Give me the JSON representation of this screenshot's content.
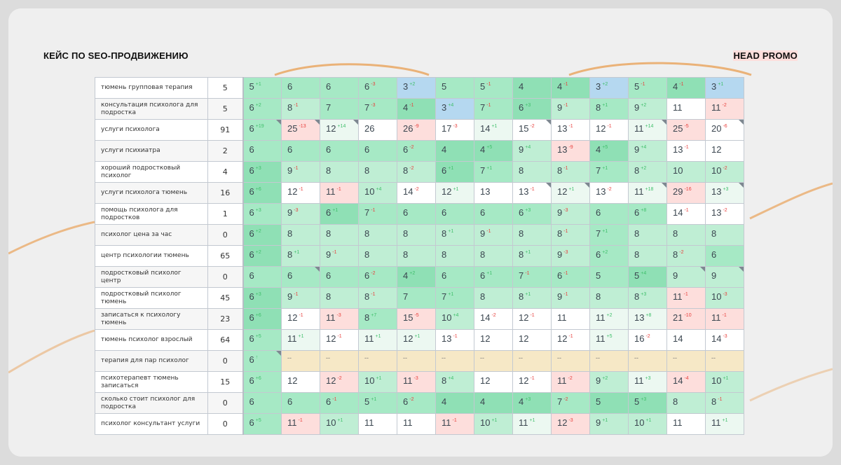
{
  "header": {
    "left_title": "КЕЙС ПО SEO-ПРОДВИЖЕНИЮ",
    "right_title": "HEAD PROMO"
  },
  "colors": {
    "accent_orange": "#e9a25a",
    "up": "#3fbf6a",
    "down": "#e8403d"
  },
  "tones": {
    "g3": "#8fe0b5",
    "g2": "#a6e9c5",
    "g1": "#bfeed4",
    "g0": "#ecf8f1",
    "w": "#ffffff",
    "r": "#fddedc",
    "b": "#b5d8f0",
    "y": "#f6e8c6"
  },
  "rows": [
    {
      "keyword": "тюмень групповая терапия",
      "freq": "5",
      "cells": [
        [
          "5",
          "+1",
          "g2"
        ],
        [
          "6",
          "",
          "g2"
        ],
        [
          "6",
          "",
          "g2"
        ],
        [
          "6",
          "-3",
          "g2"
        ],
        [
          "3",
          "+2",
          "b"
        ],
        [
          "5",
          "",
          "g2"
        ],
        [
          "5",
          "-1",
          "g2"
        ],
        [
          "4",
          "",
          "g3"
        ],
        [
          "4",
          "-1",
          "g3"
        ],
        [
          "3",
          "+2",
          "b"
        ],
        [
          "5",
          "-1",
          "g2"
        ],
        [
          "4",
          "-1",
          "g3"
        ],
        [
          "3",
          "+1",
          "b"
        ]
      ]
    },
    {
      "keyword": "консультация психолога для подростка",
      "freq": "5",
      "cells": [
        [
          "6",
          "+2",
          "g2"
        ],
        [
          "8",
          "-1",
          "g1"
        ],
        [
          "7",
          "",
          "g2"
        ],
        [
          "7",
          "-3",
          "g2"
        ],
        [
          "4",
          "-1",
          "g3"
        ],
        [
          "3",
          "+4",
          "b"
        ],
        [
          "7",
          "-1",
          "g2"
        ],
        [
          "6",
          "+3",
          "g3"
        ],
        [
          "9",
          "-1",
          "g1"
        ],
        [
          "8",
          "+1",
          "g2"
        ],
        [
          "9",
          "+2",
          "g1"
        ],
        [
          "11",
          "",
          "w"
        ],
        [
          "11",
          "-2",
          "r"
        ]
      ]
    },
    {
      "keyword": "услуги психолога",
      "freq": "91",
      "cells": [
        [
          "6",
          "+19",
          "g2",
          1
        ],
        [
          "25",
          "-13",
          "r",
          1
        ],
        [
          "12",
          "+14",
          "g0",
          1
        ],
        [
          "26",
          "",
          "w"
        ],
        [
          "26",
          "-9",
          "r"
        ],
        [
          "17",
          "-3",
          "w"
        ],
        [
          "14",
          "+1",
          "g0"
        ],
        [
          "15",
          "-2",
          "w",
          1
        ],
        [
          "13",
          "-1",
          "w"
        ],
        [
          "12",
          "-1",
          "w"
        ],
        [
          "11",
          "+14",
          "g0",
          1
        ],
        [
          "25",
          "-5",
          "r"
        ],
        [
          "20",
          "-6",
          "w",
          1
        ]
      ]
    },
    {
      "keyword": "услуги психиатра",
      "freq": "2",
      "cells": [
        [
          "6",
          "",
          "g2"
        ],
        [
          "6",
          "",
          "g2"
        ],
        [
          "6",
          "",
          "g2"
        ],
        [
          "6",
          "",
          "g2"
        ],
        [
          "6",
          "-2",
          "g2"
        ],
        [
          "4",
          "",
          "g3"
        ],
        [
          "4",
          "+5",
          "g3"
        ],
        [
          "9",
          "+4",
          "g1"
        ],
        [
          "13",
          "-9",
          "r"
        ],
        [
          "4",
          "+5",
          "g3"
        ],
        [
          "9",
          "+4",
          "g1"
        ],
        [
          "13",
          "-1",
          "w"
        ],
        [
          "12",
          "",
          "w"
        ]
      ]
    },
    {
      "keyword": "хороший подростковый психолог",
      "freq": "4",
      "cells": [
        [
          "6",
          "+3",
          "g3"
        ],
        [
          "9",
          "-1",
          "g1"
        ],
        [
          "8",
          "",
          "g1"
        ],
        [
          "8",
          "",
          "g1"
        ],
        [
          "8",
          "-2",
          "g1"
        ],
        [
          "6",
          "+1",
          "g3"
        ],
        [
          "7",
          "+1",
          "g2"
        ],
        [
          "8",
          "",
          "g1"
        ],
        [
          "8",
          "-1",
          "g1"
        ],
        [
          "7",
          "+1",
          "g2"
        ],
        [
          "8",
          "+2",
          "g1"
        ],
        [
          "10",
          "",
          "g1"
        ],
        [
          "10",
          "-2",
          "g1"
        ]
      ]
    },
    {
      "keyword": "услуги психолога тюмень",
      "freq": "16",
      "cells": [
        [
          "6",
          "+6",
          "g3"
        ],
        [
          "12",
          "-1",
          "w"
        ],
        [
          "11",
          "-1",
          "r"
        ],
        [
          "10",
          "+4",
          "g1"
        ],
        [
          "14",
          "-2",
          "w"
        ],
        [
          "12",
          "+1",
          "g0"
        ],
        [
          "13",
          "",
          "w"
        ],
        [
          "13",
          "-1",
          "w",
          1
        ],
        [
          "12",
          "+1",
          "g0",
          1
        ],
        [
          "13",
          "-2",
          "w"
        ],
        [
          "11",
          "+18",
          "g0",
          1
        ],
        [
          "29",
          "-16",
          "r"
        ],
        [
          "13",
          "+3",
          "g0",
          1
        ]
      ]
    },
    {
      "keyword": "помощь психолога для подростков",
      "freq": "1",
      "cells": [
        [
          "6",
          "+3",
          "g2"
        ],
        [
          "9",
          "-3",
          "g1"
        ],
        [
          "6",
          "+1",
          "g3"
        ],
        [
          "7",
          "-1",
          "g2"
        ],
        [
          "6",
          "",
          "g2"
        ],
        [
          "6",
          "",
          "g2"
        ],
        [
          "6",
          "",
          "g2"
        ],
        [
          "6",
          "+3",
          "g2"
        ],
        [
          "9",
          "-3",
          "g1"
        ],
        [
          "6",
          "",
          "g2"
        ],
        [
          "6",
          "+8",
          "g2"
        ],
        [
          "14",
          "-1",
          "w"
        ],
        [
          "13",
          "-2",
          "w"
        ]
      ]
    },
    {
      "keyword": "психолог цена за час",
      "freq": "0",
      "cells": [
        [
          "6",
          "+2",
          "g3"
        ],
        [
          "8",
          "",
          "g1"
        ],
        [
          "8",
          "",
          "g1"
        ],
        [
          "8",
          "",
          "g1"
        ],
        [
          "8",
          "",
          "g1"
        ],
        [
          "8",
          "+1",
          "g1"
        ],
        [
          "9",
          "-1",
          "g1"
        ],
        [
          "8",
          "",
          "g1"
        ],
        [
          "8",
          "-1",
          "g1"
        ],
        [
          "7",
          "+1",
          "g2"
        ],
        [
          "8",
          "",
          "g1"
        ],
        [
          "8",
          "",
          "g1"
        ],
        [
          "8",
          "",
          "g1"
        ]
      ]
    },
    {
      "keyword": "центр психологии тюмень",
      "freq": "65",
      "cells": [
        [
          "6",
          "+2",
          "g3"
        ],
        [
          "8",
          "+1",
          "g1"
        ],
        [
          "9",
          "-1",
          "g1"
        ],
        [
          "8",
          "",
          "g1"
        ],
        [
          "8",
          "",
          "g1"
        ],
        [
          "8",
          "",
          "g1"
        ],
        [
          "8",
          "",
          "g1"
        ],
        [
          "8",
          "+1",
          "g1"
        ],
        [
          "9",
          "-3",
          "g1"
        ],
        [
          "6",
          "+2",
          "g2"
        ],
        [
          "8",
          "",
          "g1"
        ],
        [
          "8",
          "-2",
          "g1"
        ],
        [
          "6",
          "",
          "g2"
        ]
      ]
    },
    {
      "keyword": "подростковый психолог центр",
      "freq": "0",
      "cells": [
        [
          "6",
          "",
          "g2"
        ],
        [
          "6",
          "",
          "g2",
          1
        ],
        [
          "6",
          "",
          "g2"
        ],
        [
          "6",
          "-2",
          "g2"
        ],
        [
          "4",
          "+2",
          "g3"
        ],
        [
          "6",
          "",
          "g2"
        ],
        [
          "6",
          "+1",
          "g2"
        ],
        [
          "7",
          "-1",
          "g2"
        ],
        [
          "6",
          "-1",
          "g2"
        ],
        [
          "5",
          "",
          "g2"
        ],
        [
          "5",
          "+4",
          "g3"
        ],
        [
          "9",
          "",
          "g1",
          1
        ],
        [
          "9",
          "",
          "g1",
          1
        ]
      ]
    },
    {
      "keyword": "подростковый психолог тюмень",
      "freq": "45",
      "cells": [
        [
          "6",
          "+3",
          "g3"
        ],
        [
          "9",
          "-1",
          "g1"
        ],
        [
          "8",
          "",
          "g1"
        ],
        [
          "8",
          "-1",
          "g1"
        ],
        [
          "7",
          "",
          "g2"
        ],
        [
          "7",
          "+1",
          "g2"
        ],
        [
          "8",
          "",
          "g1"
        ],
        [
          "8",
          "+1",
          "g1"
        ],
        [
          "9",
          "-1",
          "g1"
        ],
        [
          "8",
          "",
          "g1"
        ],
        [
          "8",
          "+3",
          "g1"
        ],
        [
          "11",
          "-1",
          "r"
        ],
        [
          "10",
          "-3",
          "g1"
        ]
      ]
    },
    {
      "keyword": "записаться к психологу тюмень",
      "freq": "23",
      "cells": [
        [
          "6",
          "+6",
          "g3"
        ],
        [
          "12",
          "-1",
          "w"
        ],
        [
          "11",
          "-3",
          "r"
        ],
        [
          "8",
          "+7",
          "g2"
        ],
        [
          "15",
          "-5",
          "r"
        ],
        [
          "10",
          "+4",
          "g1"
        ],
        [
          "14",
          "-2",
          "w"
        ],
        [
          "12",
          "-1",
          "w"
        ],
        [
          "11",
          "",
          "w"
        ],
        [
          "11",
          "+2",
          "g0"
        ],
        [
          "13",
          "+8",
          "g0"
        ],
        [
          "21",
          "-10",
          "r"
        ],
        [
          "11",
          "-1",
          "r"
        ]
      ]
    },
    {
      "keyword": "тюмень психолог взрослый",
      "freq": "64",
      "cells": [
        [
          "6",
          "+5",
          "g2"
        ],
        [
          "11",
          "+1",
          "g0"
        ],
        [
          "12",
          "-1",
          "w"
        ],
        [
          "11",
          "+1",
          "g0"
        ],
        [
          "12",
          "+1",
          "g0"
        ],
        [
          "13",
          "-1",
          "w"
        ],
        [
          "12",
          "",
          "w"
        ],
        [
          "12",
          "",
          "w"
        ],
        [
          "12",
          "-1",
          "w"
        ],
        [
          "11",
          "+5",
          "g0"
        ],
        [
          "16",
          "-2",
          "w"
        ],
        [
          "14",
          "",
          "w"
        ],
        [
          "14",
          "-3",
          "w"
        ]
      ]
    },
    {
      "keyword": "терапия для пар психолог",
      "freq": "0",
      "cells": [
        [
          "6",
          "↑",
          "g2",
          1
        ],
        [
          "--",
          "",
          "y"
        ],
        [
          "--",
          "",
          "y"
        ],
        [
          "--",
          "",
          "y"
        ],
        [
          "--",
          "",
          "y"
        ],
        [
          "--",
          "",
          "y"
        ],
        [
          "--",
          "",
          "y"
        ],
        [
          "--",
          "",
          "y"
        ],
        [
          "--",
          "",
          "y"
        ],
        [
          "--",
          "",
          "y"
        ],
        [
          "--",
          "",
          "y"
        ],
        [
          "--",
          "",
          "y"
        ],
        [
          "--",
          "",
          "y"
        ]
      ]
    },
    {
      "keyword": "психотерапевт тюмень записаться",
      "freq": "15",
      "cells": [
        [
          "6",
          "+6",
          "g2"
        ],
        [
          "12",
          "",
          "w"
        ],
        [
          "12",
          "-2",
          "r"
        ],
        [
          "10",
          "+1",
          "g1"
        ],
        [
          "11",
          "-3",
          "r"
        ],
        [
          "8",
          "+4",
          "g1"
        ],
        [
          "12",
          "",
          "w"
        ],
        [
          "12",
          "-1",
          "w"
        ],
        [
          "11",
          "-2",
          "r"
        ],
        [
          "9",
          "+2",
          "g1"
        ],
        [
          "11",
          "+3",
          "g0"
        ],
        [
          "14",
          "-4",
          "r"
        ],
        [
          "10",
          "+1",
          "g1"
        ]
      ]
    },
    {
      "keyword": "сколько стоит психолог для подростка",
      "freq": "0",
      "cells": [
        [
          "6",
          "",
          "g2"
        ],
        [
          "6",
          "",
          "g2"
        ],
        [
          "6",
          "-1",
          "g2"
        ],
        [
          "5",
          "+1",
          "g2"
        ],
        [
          "6",
          "-2",
          "g2"
        ],
        [
          "4",
          "",
          "g3"
        ],
        [
          "4",
          "",
          "g3"
        ],
        [
          "4",
          "+3",
          "g3"
        ],
        [
          "7",
          "-2",
          "g2"
        ],
        [
          "5",
          "",
          "g3"
        ],
        [
          "5",
          "+3",
          "g3"
        ],
        [
          "8",
          "",
          "g1"
        ],
        [
          "8",
          "-1",
          "g1"
        ]
      ]
    },
    {
      "keyword": "психолог консультант услуги",
      "freq": "0",
      "cells": [
        [
          "6",
          "+5",
          "g2"
        ],
        [
          "11",
          "-1",
          "r"
        ],
        [
          "10",
          "+1",
          "g1"
        ],
        [
          "11",
          "",
          "w"
        ],
        [
          "11",
          "",
          "w"
        ],
        [
          "11",
          "-1",
          "r"
        ],
        [
          "10",
          "+1",
          "g1"
        ],
        [
          "11",
          "+1",
          "g0"
        ],
        [
          "12",
          "-3",
          "r"
        ],
        [
          "9",
          "+1",
          "g1"
        ],
        [
          "10",
          "+1",
          "g1"
        ],
        [
          "11",
          "",
          "w"
        ],
        [
          "11",
          "+1",
          "g0"
        ]
      ]
    }
  ]
}
